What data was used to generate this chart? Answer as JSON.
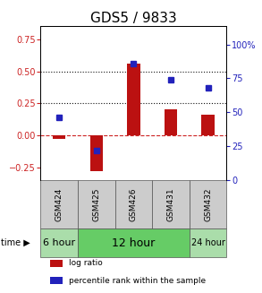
{
  "title": "GDS5 / 9833",
  "samples": [
    "GSM424",
    "GSM425",
    "GSM426",
    "GSM431",
    "GSM432"
  ],
  "log_ratio": [
    -0.03,
    -0.28,
    0.56,
    0.2,
    0.16
  ],
  "percentile_rank_pct": [
    46,
    22,
    86,
    74,
    68
  ],
  "ylim_left": [
    -0.35,
    0.85
  ],
  "ylim_right": [
    0,
    113.33
  ],
  "yticks_left": [
    -0.25,
    0.0,
    0.25,
    0.5,
    0.75
  ],
  "yticks_right": [
    0,
    25,
    50,
    75,
    100
  ],
  "hlines": [
    0.0,
    0.25,
    0.5
  ],
  "hline_colors": [
    "#cc2222",
    "#111111",
    "#111111"
  ],
  "hline_styles": [
    "--",
    ":",
    ":"
  ],
  "bar_color": "#bb1111",
  "dot_color": "#2222bb",
  "group_info": [
    {
      "start": 0,
      "end": 0,
      "label": "6 hour",
      "color": "#aaddaa",
      "fontsize": 8
    },
    {
      "start": 1,
      "end": 3,
      "label": "12 hour",
      "color": "#66cc66",
      "fontsize": 9
    },
    {
      "start": 4,
      "end": 4,
      "label": "24 hour",
      "color": "#aaddaa",
      "fontsize": 7
    }
  ],
  "legend_items": [
    {
      "label": "log ratio",
      "color": "#bb1111"
    },
    {
      "label": "percentile rank within the sample",
      "color": "#2222bb"
    }
  ],
  "title_fontsize": 11,
  "tick_fontsize": 7,
  "sample_fontsize": 6.5,
  "left_tick_color": "#cc2222",
  "right_tick_color": "#2222bb"
}
